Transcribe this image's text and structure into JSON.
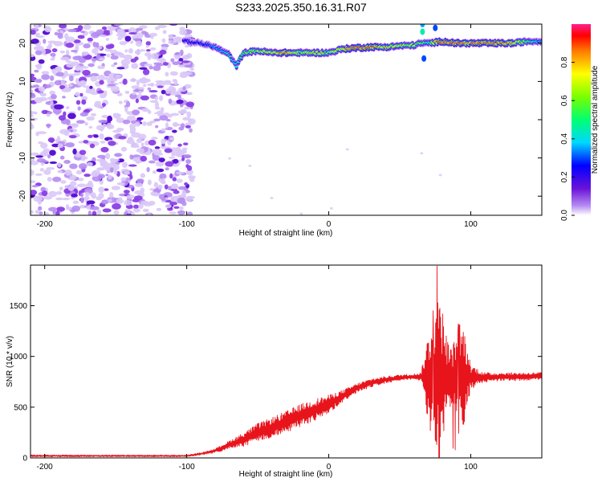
{
  "title": "S233.2025.350.16.31.R07",
  "chart_data": [
    {
      "type": "heatmap",
      "name": "spectrogram",
      "xlabel": "Height of straight line (km)",
      "ylabel": "Frequency (Hz)",
      "xlim": [
        -210,
        150
      ],
      "ylim": [
        -25,
        25
      ],
      "x_ticks": [
        -200,
        -100,
        0,
        100
      ],
      "y_ticks": [
        -20,
        -10,
        0,
        10,
        20
      ],
      "noise_region_x": [
        -210,
        -100
      ],
      "ridge": {
        "x": [
          -100,
          -90,
          -80,
          -70,
          -65,
          -60,
          -50,
          -40,
          -30,
          -20,
          -10,
          0,
          10,
          20,
          30,
          40,
          50,
          60,
          65,
          70,
          75,
          80,
          90,
          100,
          110,
          120,
          130,
          140,
          150
        ],
        "freq": [
          20.5,
          20,
          19,
          17,
          14,
          17.5,
          18,
          17.5,
          17.5,
          17.5,
          17.5,
          17.5,
          18.5,
          18.8,
          19,
          19,
          19.3,
          19.5,
          20,
          20,
          20.2,
          20.5,
          20,
          20,
          20,
          20,
          20,
          20.5,
          20.5
        ],
        "amplitude": [
          0.25,
          0.3,
          0.35,
          0.45,
          0.4,
          0.55,
          0.65,
          0.75,
          0.9,
          0.6,
          0.75,
          0.6,
          0.8,
          0.95,
          0.85,
          0.75,
          0.7,
          0.65,
          0.6,
          0.45,
          0.75,
          0.95,
          0.95,
          0.9,
          0.95,
          0.9,
          0.8,
          0.55,
          0.35
        ]
      },
      "colorbar": {
        "label": "Normalized spectral amplitude",
        "ticks": [
          "0.0",
          "0.2",
          "0.4",
          "0.6",
          "0.8"
        ],
        "range": [
          0,
          1
        ]
      }
    },
    {
      "type": "line",
      "name": "snr",
      "xlabel": "Height of straight line (km)",
      "ylabel": "SNR (10 * v/v)",
      "xlim": [
        -210,
        150
      ],
      "ylim": [
        0,
        1900
      ],
      "x_ticks": [
        -200,
        -100,
        0,
        100
      ],
      "y_ticks": [
        0,
        500,
        1000,
        1500
      ],
      "color": "#e8141c",
      "envelope": {
        "x": [
          -210,
          -150,
          -100,
          -90,
          -80,
          -70,
          -60,
          -50,
          -40,
          -30,
          -20,
          -10,
          0,
          10,
          20,
          30,
          40,
          50,
          60,
          65,
          68,
          72,
          75,
          78,
          82,
          85,
          88,
          90,
          92,
          95,
          100,
          110,
          120,
          130,
          140,
          150
        ],
        "base": [
          20,
          20,
          20,
          40,
          70,
          130,
          180,
          250,
          300,
          350,
          420,
          470,
          530,
          610,
          690,
          740,
          770,
          790,
          800,
          800,
          790,
          790,
          800,
          800,
          780,
          790,
          790,
          800,
          790,
          800,
          800,
          790,
          800,
          800,
          800,
          810
        ],
        "noise": [
          10,
          8,
          8,
          12,
          20,
          40,
          70,
          90,
          100,
          110,
          110,
          110,
          90,
          60,
          45,
          40,
          35,
          30,
          30,
          40,
          300,
          550,
          700,
          900,
          500,
          300,
          350,
          450,
          600,
          500,
          120,
          50,
          40,
          40,
          40,
          35
        ]
      },
      "peaks": [
        {
          "x": 76.2,
          "y": 1890
        },
        {
          "x": 73.5,
          "y": 1450
        },
        {
          "x": 91.0,
          "y": 1260
        },
        {
          "x": 76.0,
          "y": 130
        },
        {
          "x": 87.5,
          "y": 95
        },
        {
          "x": 89.0,
          "y": 80
        },
        {
          "x": 71.5,
          "y": 270
        }
      ]
    }
  ]
}
